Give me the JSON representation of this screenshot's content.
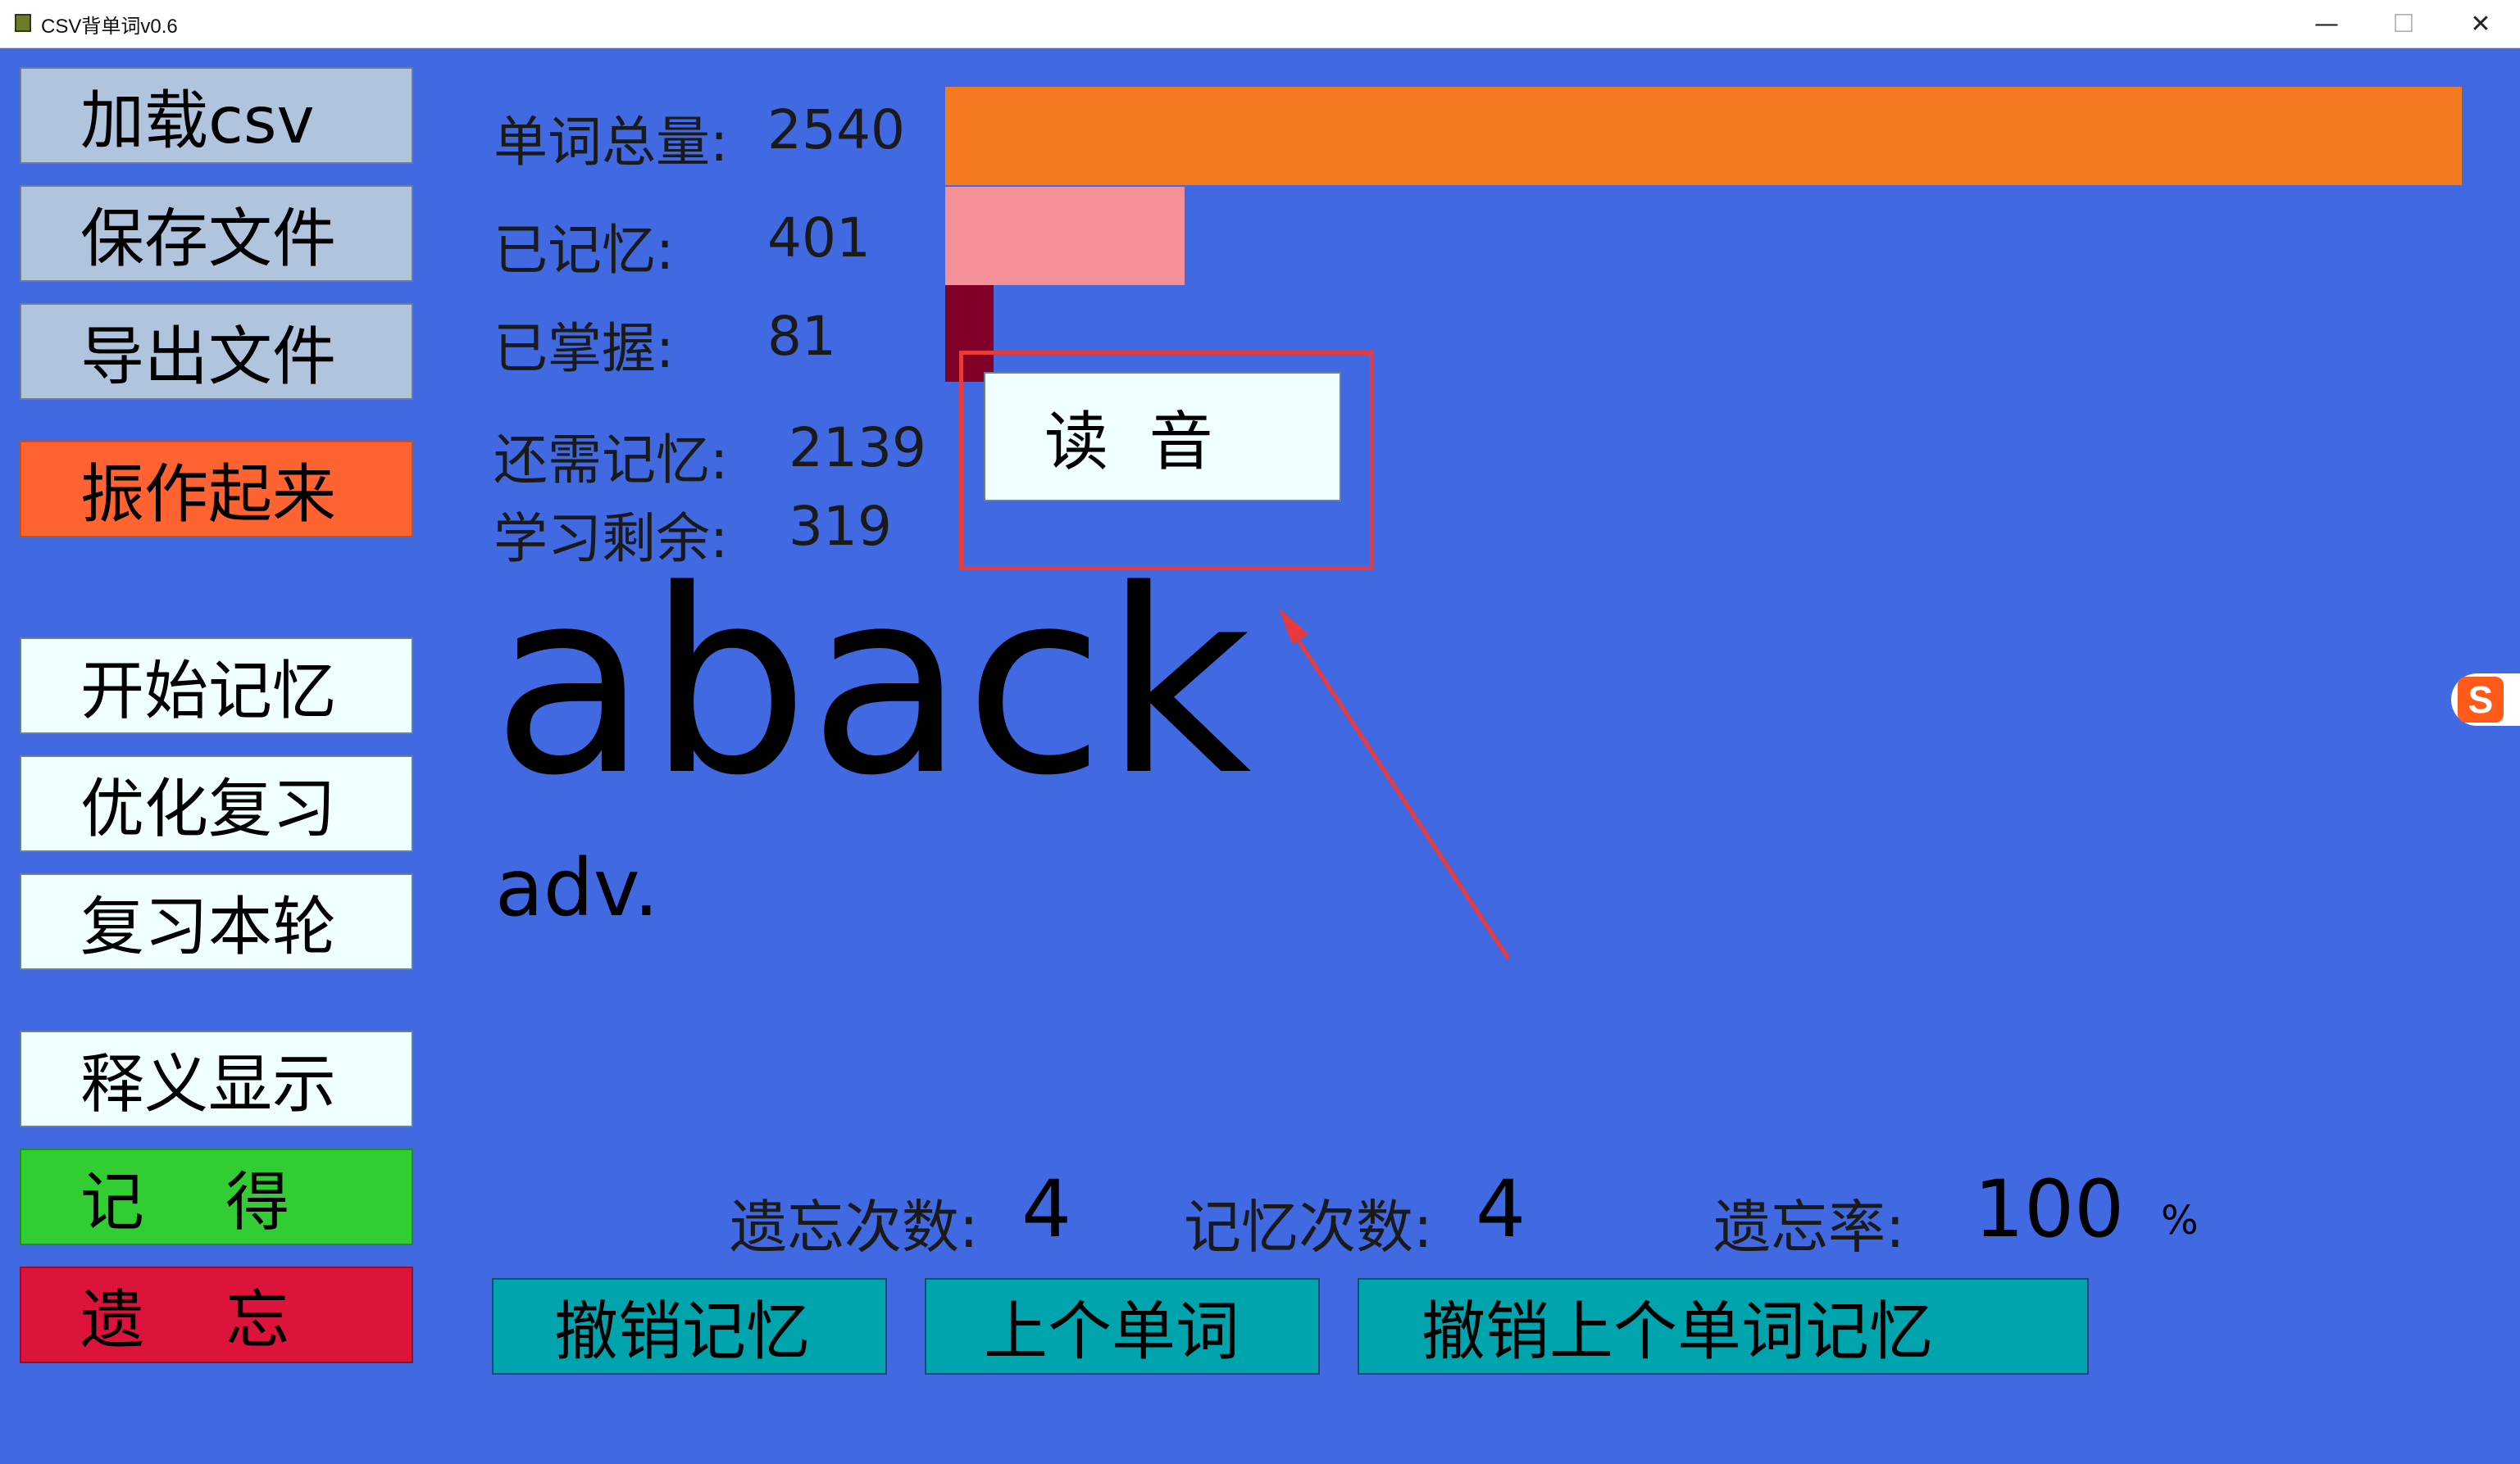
{
  "window": {
    "title": "CSV背单词v0.6",
    "minimize": "—",
    "maximize": "☐",
    "close": "✕"
  },
  "sidebar": {
    "load_csv": "加载csv",
    "save_file": "保存文件",
    "export_file": "导出文件",
    "cheer_up": "振作起来",
    "start_memorize": "开始记忆",
    "optimize_review": "优化复习",
    "review_round": "复习本轮",
    "show_meaning": "释义显示",
    "remember": "记    得",
    "forget": "遗    忘"
  },
  "stats": {
    "total_label": "单词总量:",
    "total_value": "2540",
    "memorized_label": "已记忆:",
    "memorized_value": "401",
    "mastered_label": "已掌握:",
    "mastered_value": "81",
    "remaining_label": "还需记忆:",
    "remaining_value": "2139",
    "study_left_label": "学习剩余:",
    "study_left_value": "319"
  },
  "progress": {
    "memorized_fraction": 0.158,
    "mastered_fraction": 0.032,
    "colors": {
      "total": "#f47920",
      "memorized": "#f49098",
      "mastered": "#800028"
    }
  },
  "speak_button": "读  音",
  "current_word": {
    "word": "aback",
    "part_of_speech": "adv."
  },
  "bottom_stats": {
    "forget_count_label": "遗忘次数:",
    "forget_count_value": "4",
    "memory_count_label": "记忆次数:",
    "memory_count_value": "4",
    "forget_rate_label": "遗忘率:",
    "forget_rate_value": "100",
    "forget_rate_unit": "%"
  },
  "bottom_buttons": {
    "undo_memory": "撤销记忆",
    "prev_word": "上个单词",
    "undo_prev_memory": "撤销上个单词记忆"
  },
  "ime": {
    "letter": "S"
  }
}
